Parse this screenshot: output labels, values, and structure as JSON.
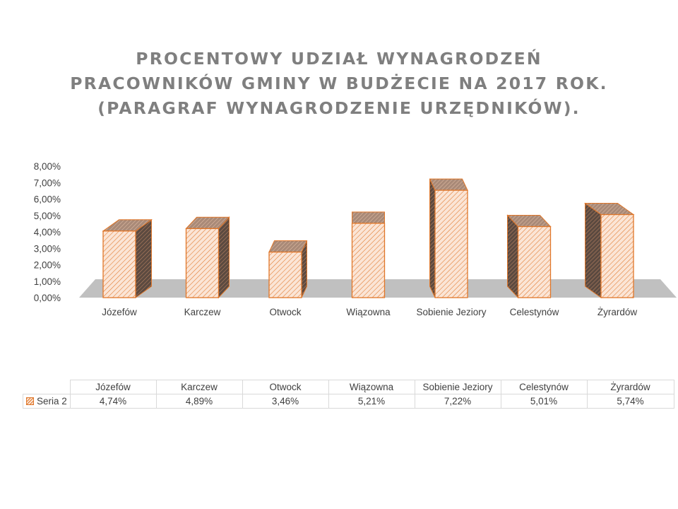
{
  "chart_data": {
    "type": "bar",
    "title_lines": [
      "PROCENTOWY UDZIAŁ WYNAGRODZEŃ",
      "PRACOWNIKÓW GMINY W BUDŻECIE NA 2017 ROK.",
      "(PARAGRAF WYNAGRODZENIE URZĘDNIKÓW)."
    ],
    "categories": [
      "Józefów",
      "Karczew",
      "Otwock",
      "Wiązowna",
      "Sobienie Jeziory",
      "Celestynów",
      "Żyrardów"
    ],
    "series": [
      {
        "name": "Seria 2",
        "values": [
          4.74,
          4.89,
          3.46,
          5.21,
          7.22,
          5.01,
          5.74
        ],
        "value_labels": [
          "4,74%",
          "4,89%",
          "3,46%",
          "5,21%",
          "7,22%",
          "5,01%",
          "5,74%"
        ]
      }
    ],
    "ylim": [
      0,
      8
    ],
    "yticks": [
      "0,00%",
      "1,00%",
      "2,00%",
      "3,00%",
      "4,00%",
      "5,00%",
      "6,00%",
      "7,00%",
      "8,00%"
    ],
    "style": "3d-column",
    "grid": false,
    "legend": "data-table-below",
    "colors": {
      "bar_fill": "#fbe5d6",
      "bar_stroke": "#e0772a",
      "floor": "#c0c0c0"
    }
  }
}
